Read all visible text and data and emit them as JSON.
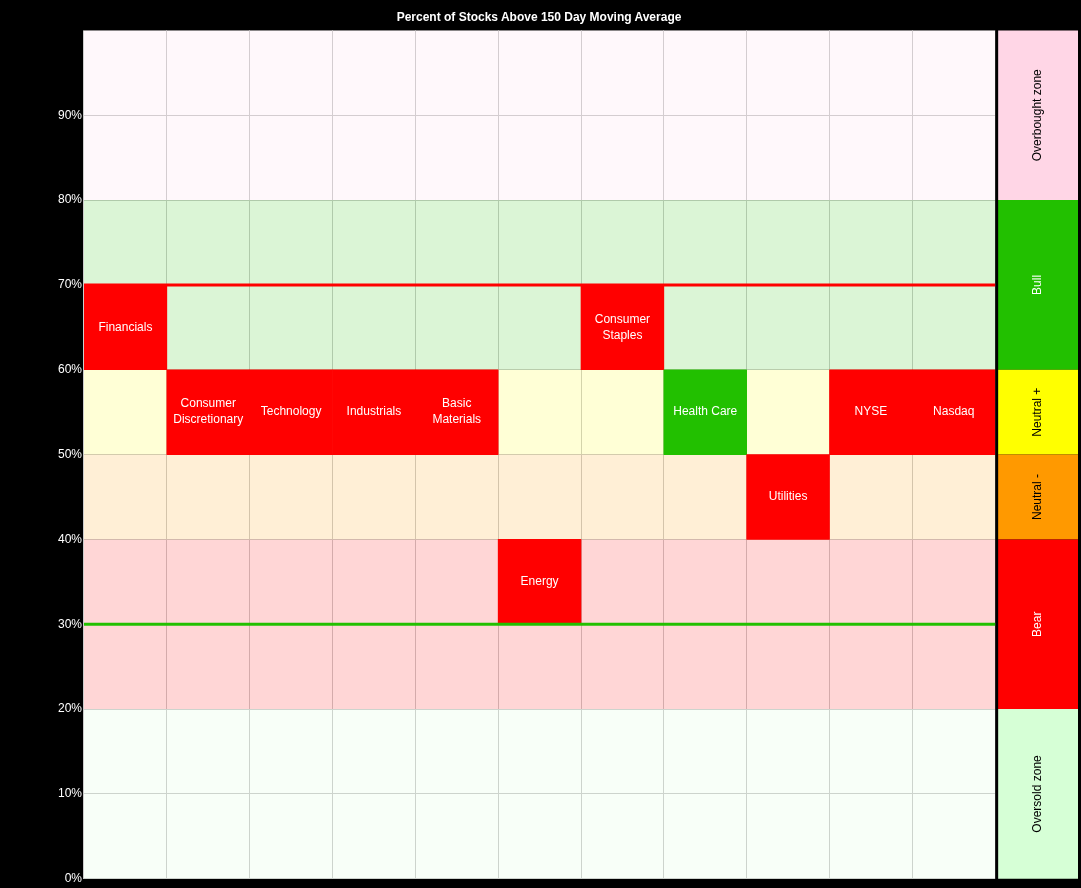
{
  "chart_data": {
    "type": "bar",
    "title": "Percent of Stocks Above 150 Day Moving Average",
    "categories": [
      "Financials",
      "Consumer Discretionary",
      "Technology",
      "Industrials",
      "Basic Materials",
      "Energy",
      "Consumer Staples",
      "Health Care",
      "Utilities",
      "NYSE",
      "Nasdaq"
    ],
    "base": [
      60,
      50,
      50,
      50,
      50,
      30,
      60,
      50,
      40,
      50,
      50
    ],
    "values": [
      10,
      10,
      10,
      10,
      10,
      10,
      10,
      10,
      10,
      10,
      10
    ],
    "colors": [
      "#ff0000",
      "#ff0000",
      "#ff0000",
      "#ff0000",
      "#ff0000",
      "#ff0000",
      "#ff0000",
      "#22c000",
      "#ff0000",
      "#ff0000",
      "#ff0000"
    ],
    "ylim": [
      0,
      100
    ],
    "yticks": [
      {
        "value": 0,
        "label": "0%"
      },
      {
        "value": 10,
        "label": "10%"
      },
      {
        "value": 20,
        "label": "20%"
      },
      {
        "value": 30,
        "label": "30%"
      },
      {
        "value": 40,
        "label": "40%"
      },
      {
        "value": 50,
        "label": "50%"
      },
      {
        "value": 60,
        "label": "60%"
      },
      {
        "value": 70,
        "label": "70%"
      },
      {
        "value": 80,
        "label": "80%"
      },
      {
        "value": 90,
        "label": "90%"
      }
    ],
    "grid": true,
    "legend": false,
    "ref_lines": [
      {
        "axis": "y",
        "value": 70,
        "color": "#ff0000"
      },
      {
        "axis": "y",
        "value": 30,
        "color": "#22c000"
      }
    ],
    "bands": [
      {
        "axis": "y",
        "from": 80,
        "to": 100,
        "label": "Overbought zone",
        "color": "#ffd6e6"
      },
      {
        "axis": "y",
        "from": 60,
        "to": 80,
        "label": "Bull",
        "color": "#22c000"
      },
      {
        "axis": "y",
        "from": 50,
        "to": 60,
        "label": "Neutral +",
        "color": "#ffff00"
      },
      {
        "axis": "y",
        "from": 40,
        "to": 50,
        "label": "Neutral -",
        "color": "#ff9900"
      },
      {
        "axis": "y",
        "from": 20,
        "to": 40,
        "label": "Bear",
        "color": "#ff0000"
      },
      {
        "axis": "y",
        "from": 0,
        "to": 20,
        "label": "Oversold zone",
        "color": "#d6ffd6"
      }
    ]
  }
}
